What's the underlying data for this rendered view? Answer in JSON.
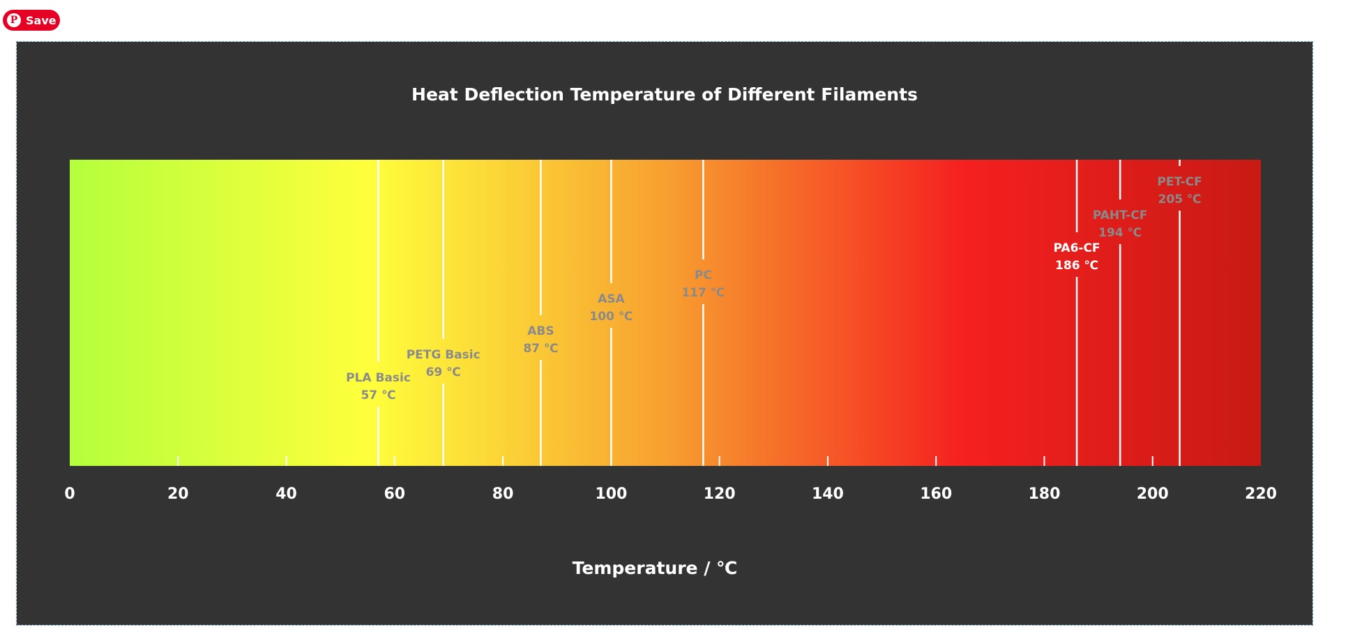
{
  "pinterest": {
    "save_label": "Save",
    "icon": "pinterest-icon"
  },
  "colors": {
    "background": "#333333",
    "gradient": [
      "#b4ff3c",
      "#ffff3c",
      "#f7a030",
      "#f52020",
      "#c81a14"
    ],
    "pinterest_red": "#e60023"
  },
  "chart_data": {
    "type": "bar",
    "title": "Heat Deflection Temperature of Different Filaments",
    "xlabel": "Temperature / ℃",
    "xlim": [
      0,
      220
    ],
    "xticks": [
      0,
      20,
      40,
      60,
      80,
      100,
      120,
      140,
      160,
      180,
      200,
      220
    ],
    "grid": false,
    "markers": [
      {
        "name": "PLA Basic",
        "value": 57,
        "label": "57 ℃"
      },
      {
        "name": "PETG Basic",
        "value": 69,
        "label": "69 ℃"
      },
      {
        "name": "ABS",
        "value": 87,
        "label": "87 ℃"
      },
      {
        "name": "ASA",
        "value": 100,
        "label": "100 ℃"
      },
      {
        "name": "PC",
        "value": 117,
        "label": "117 ℃"
      },
      {
        "name": "PA6-CF",
        "value": 186,
        "label": "186 ℃"
      },
      {
        "name": "PAHT-CF",
        "value": 194,
        "label": "194 ℃"
      },
      {
        "name": "PET-CF",
        "value": 205,
        "label": "205 ℃"
      }
    ]
  }
}
